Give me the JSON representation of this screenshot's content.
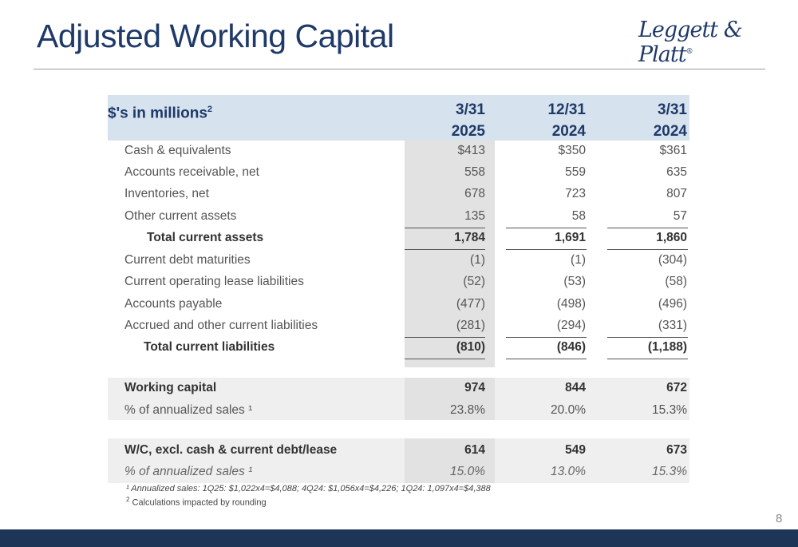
{
  "slide": {
    "title": "Adjusted Working Capital",
    "logo_text": "Leggett & Platt",
    "logo_mark": "®",
    "page_number": "8"
  },
  "table": {
    "label_header": "$'s in millions",
    "label_header_sup": "2",
    "columns": [
      {
        "line1": "3/31",
        "line2": "2025"
      },
      {
        "line1": "12/31",
        "line2": "2024"
      },
      {
        "line1": "3/31",
        "line2": "2024"
      }
    ],
    "rows": [
      {
        "label": "Cash & equivalents",
        "values": [
          "$413",
          "$350",
          "$361"
        ]
      },
      {
        "label": "Accounts receivable, net",
        "values": [
          "558",
          "559",
          "635"
        ]
      },
      {
        "label": "Inventories, net",
        "values": [
          "678",
          "723",
          "807"
        ]
      },
      {
        "label": "Other current assets",
        "values": [
          "135",
          "58",
          "57"
        ]
      },
      {
        "label": "Total current assets",
        "values": [
          "1,784",
          "1,691",
          "1,860"
        ]
      },
      {
        "label": "Current debt maturities",
        "values": [
          "(1)",
          "(1)",
          "(304)"
        ]
      },
      {
        "label": "Current operating lease liabilities",
        "values": [
          "(52)",
          "(53)",
          "(58)"
        ]
      },
      {
        "label": "Accounts payable",
        "values": [
          "(477)",
          "(498)",
          "(496)"
        ]
      },
      {
        "label": "Accrued and other current liabilities",
        "values": [
          "(281)",
          "(294)",
          "(331)"
        ]
      },
      {
        "label": "Total current liabilities",
        "values": [
          "(810)",
          "(846)",
          "(1,188)"
        ]
      },
      {
        "label": "Working capital",
        "values": [
          "974",
          "844",
          "672"
        ]
      },
      {
        "label": "% of annualized sales ¹",
        "values": [
          "23.8%",
          "20.0%",
          "15.3%"
        ]
      },
      {
        "label": "W/C, excl. cash & current debt/lease",
        "values": [
          "614",
          "549",
          "673"
        ]
      },
      {
        "label": "% of annualized sales ¹",
        "values": [
          "15.0%",
          "13.0%",
          "15.3%"
        ]
      }
    ]
  },
  "footnotes": {
    "note1": "¹ Annualized sales: 1Q25: $1,022x4=$4,088; 4Q24: $1,056x4=$4,226; 1Q24: 1,097x4=$4,388",
    "note2_sup": "2",
    "note2": " Calculations impacted by rounding"
  },
  "colors": {
    "title": "#1f3a68",
    "header_band": "#d6e2ee",
    "footer_bar": "#1d3657",
    "shade": "#e2e2e2"
  }
}
